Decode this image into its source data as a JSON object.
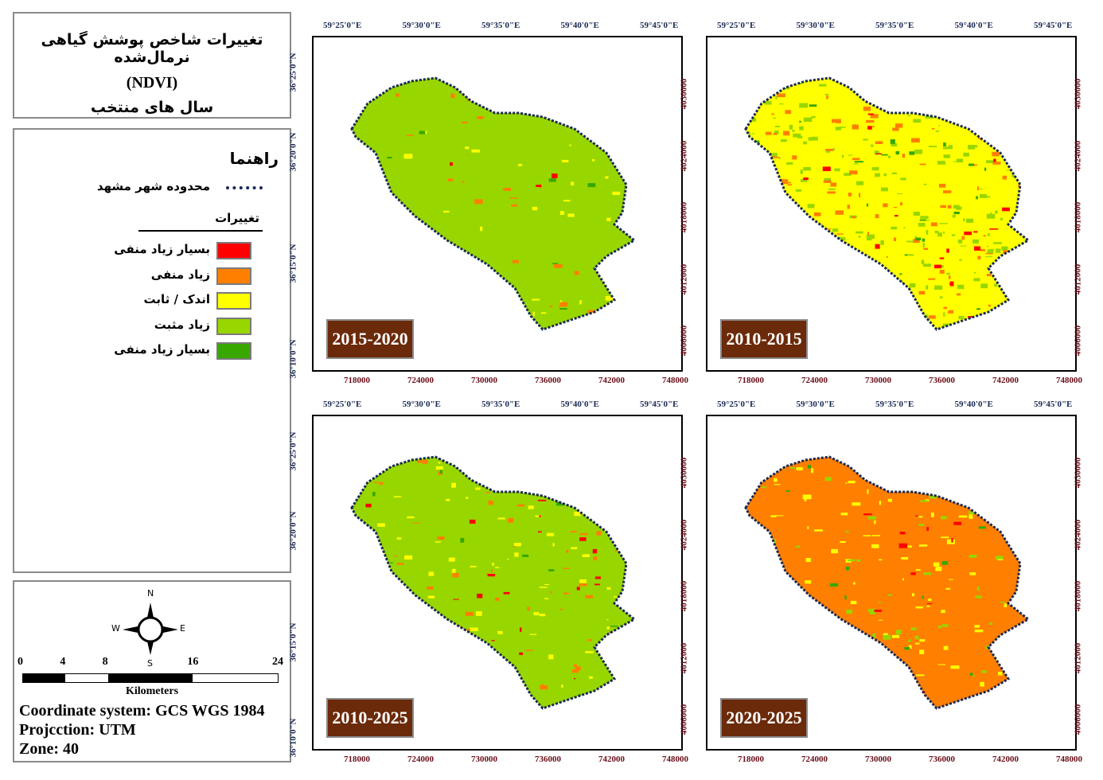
{
  "title": {
    "line1": "تغییرات شاخص پوشش گیاهی نرمال‌شده",
    "line2": "(NDVI)",
    "line3": "سال های منتخب"
  },
  "legend": {
    "heading": "راهنما",
    "boundary_label": "محدوده شهر مشهد",
    "changes_heading": "تغییرات",
    "classes": [
      {
        "label": "بسیار زیاد منفی",
        "color": "#ff0000"
      },
      {
        "label": "زیاد منفی",
        "color": "#ff7f00"
      },
      {
        "label": "اندک / ثابت",
        "color": "#ffff00"
      },
      {
        "label": "زیاد مثبت",
        "color": "#98d600"
      },
      {
        "label": "بسیار زیاد منفی",
        "color": "#38a800"
      }
    ]
  },
  "scale": {
    "ticks": [
      "0",
      "4",
      "8",
      "16",
      "24"
    ],
    "unit": "Kilometers"
  },
  "compass": {
    "n": "N",
    "s": "S",
    "e": "E",
    "w": "W"
  },
  "info": {
    "coord": "Coordinate system: GCS WGS 1984",
    "proj": "Projcction: UTM",
    "zone": "Zone: 40"
  },
  "axes": {
    "lon": [
      "59°25'0\"E",
      "59°30'0\"E",
      "59°35'0\"E",
      "59°40'0\"E",
      "59°45'0\"E"
    ],
    "lat": [
      "36°25'0\"N",
      "36°20'0\"N",
      "36°15'0\"N",
      "36°10'0\"N"
    ],
    "easting": [
      "718000",
      "724000",
      "730000",
      "736000",
      "742000",
      "748000"
    ],
    "northing": [
      "4030000",
      "4024000",
      "4018000",
      "4012000",
      "4006000"
    ]
  },
  "maps": [
    {
      "period": "2015-2020",
      "mix": {
        "#98d600": 0.88,
        "#ffff00": 0.05,
        "#ff7f00": 0.04,
        "#38a800": 0.02,
        "#ff0000": 0.01
      }
    },
    {
      "period": "2010-2015",
      "mix": {
        "#ffff00": 0.45,
        "#98d600": 0.3,
        "#ff7f00": 0.17,
        "#38a800": 0.04,
        "#ff0000": 0.04
      }
    },
    {
      "period": "2010-2025",
      "mix": {
        "#98d600": 0.72,
        "#ffff00": 0.12,
        "#ff7f00": 0.1,
        "#38a800": 0.03,
        "#ff0000": 0.03
      }
    },
    {
      "period": "2020-2025",
      "mix": {
        "#ff7f00": 0.72,
        "#ffff00": 0.14,
        "#98d600": 0.1,
        "#ff0000": 0.02,
        "#38a800": 0.02
      }
    }
  ]
}
